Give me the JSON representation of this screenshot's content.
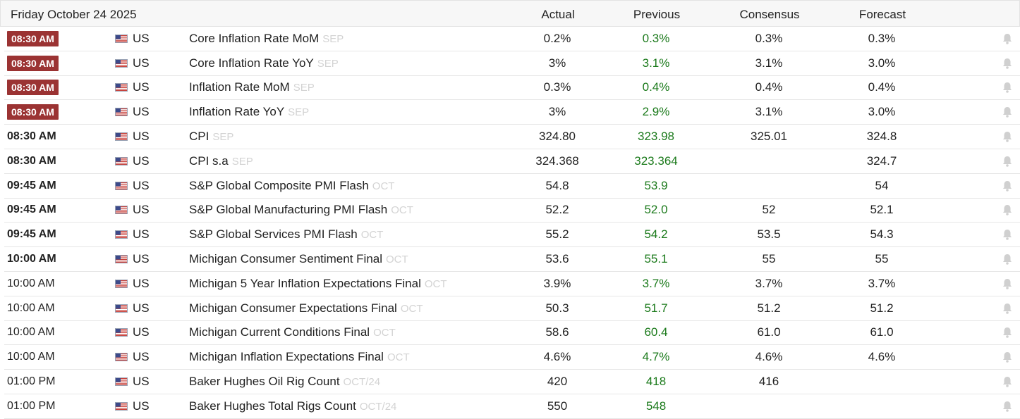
{
  "header": {
    "date": "Friday October 24 2025",
    "columns": [
      "Actual",
      "Previous",
      "Consensus",
      "Forecast"
    ]
  },
  "colors": {
    "badge_background": "#9b3333",
    "previous_text": "#1b7a1b",
    "reference_text": "#d3d3d3",
    "bell_icon": "#d0d0d0"
  },
  "events": [
    {
      "time": "08:30 AM",
      "style": "badge",
      "country": "US",
      "event": "Core Inflation Rate MoM",
      "ref": "SEP",
      "actual": "0.2%",
      "previous": "0.3%",
      "consensus": "0.3%",
      "forecast": "0.3%"
    },
    {
      "time": "08:30 AM",
      "style": "badge",
      "country": "US",
      "event": "Core Inflation Rate YoY",
      "ref": "SEP",
      "actual": "3%",
      "previous": "3.1%",
      "consensus": "3.1%",
      "forecast": "3.0%"
    },
    {
      "time": "08:30 AM",
      "style": "badge",
      "country": "US",
      "event": "Inflation Rate MoM",
      "ref": "SEP",
      "actual": "0.3%",
      "previous": "0.4%",
      "consensus": "0.4%",
      "forecast": "0.4%"
    },
    {
      "time": "08:30 AM",
      "style": "badge",
      "country": "US",
      "event": "Inflation Rate YoY",
      "ref": "SEP",
      "actual": "3%",
      "previous": "2.9%",
      "consensus": "3.1%",
      "forecast": "3.0%"
    },
    {
      "time": "08:30 AM",
      "style": "bold",
      "country": "US",
      "event": "CPI",
      "ref": "SEP",
      "actual": "324.80",
      "previous": "323.98",
      "consensus": "325.01",
      "forecast": "324.8"
    },
    {
      "time": "08:30 AM",
      "style": "bold",
      "country": "US",
      "event": "CPI s.a",
      "ref": "SEP",
      "actual": "324.368",
      "previous": "323.364",
      "consensus": "",
      "forecast": "324.7"
    },
    {
      "time": "09:45 AM",
      "style": "bold",
      "country": "US",
      "event": "S&P Global Composite PMI Flash",
      "ref": "OCT",
      "actual": "54.8",
      "previous": "53.9",
      "consensus": "",
      "forecast": "54"
    },
    {
      "time": "09:45 AM",
      "style": "bold",
      "country": "US",
      "event": "S&P Global Manufacturing PMI Flash",
      "ref": "OCT",
      "actual": "52.2",
      "previous": "52.0",
      "consensus": "52",
      "forecast": "52.1"
    },
    {
      "time": "09:45 AM",
      "style": "bold",
      "country": "US",
      "event": "S&P Global Services PMI Flash",
      "ref": "OCT",
      "actual": "55.2",
      "previous": "54.2",
      "consensus": "53.5",
      "forecast": "54.3"
    },
    {
      "time": "10:00 AM",
      "style": "bold",
      "country": "US",
      "event": "Michigan Consumer Sentiment Final",
      "ref": "OCT",
      "actual": "53.6",
      "previous": "55.1",
      "consensus": "55",
      "forecast": "55"
    },
    {
      "time": "10:00 AM",
      "style": "normal",
      "country": "US",
      "event": "Michigan 5 Year Inflation Expectations Final",
      "ref": "OCT",
      "actual": "3.9%",
      "previous": "3.7%",
      "consensus": "3.7%",
      "forecast": "3.7%"
    },
    {
      "time": "10:00 AM",
      "style": "normal",
      "country": "US",
      "event": "Michigan Consumer Expectations Final",
      "ref": "OCT",
      "actual": "50.3",
      "previous": "51.7",
      "consensus": "51.2",
      "forecast": "51.2"
    },
    {
      "time": "10:00 AM",
      "style": "normal",
      "country": "US",
      "event": "Michigan Current Conditions Final",
      "ref": "OCT",
      "actual": "58.6",
      "previous": "60.4",
      "consensus": "61.0",
      "forecast": "61.0"
    },
    {
      "time": "10:00 AM",
      "style": "normal",
      "country": "US",
      "event": "Michigan Inflation Expectations Final",
      "ref": "OCT",
      "actual": "4.6%",
      "previous": "4.7%",
      "consensus": "4.6%",
      "forecast": "4.6%"
    },
    {
      "time": "01:00 PM",
      "style": "normal",
      "country": "US",
      "event": "Baker Hughes Oil Rig Count",
      "ref": "OCT/24",
      "actual": "420",
      "previous": "418",
      "consensus": "416",
      "forecast": ""
    },
    {
      "time": "01:00 PM",
      "style": "normal",
      "country": "US",
      "event": "Baker Hughes Total Rigs Count",
      "ref": "OCT/24",
      "actual": "550",
      "previous": "548",
      "consensus": "",
      "forecast": ""
    }
  ]
}
